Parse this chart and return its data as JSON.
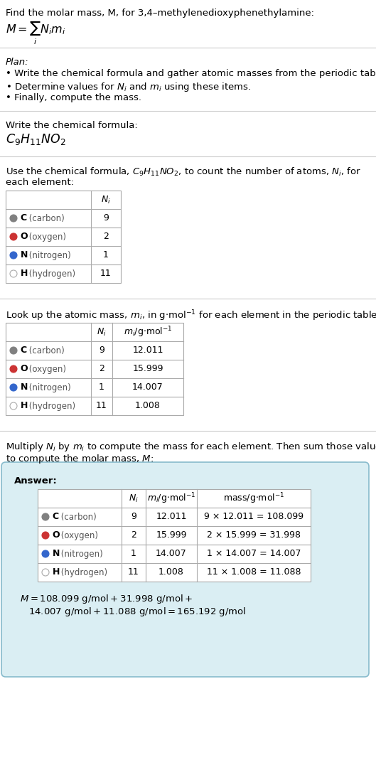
{
  "title_line": "Find the molar mass, M, for 3,4–methylenedioxyphenethylamine:",
  "bg_color": "#ffffff",
  "answer_bg": "#daeef3",
  "answer_border": "#aaccdd",
  "separator_color": "#cccccc",
  "table_border": "#aaaaaa",
  "elements": [
    "C",
    "O",
    "N",
    "H"
  ],
  "element_names": [
    "carbon",
    "oxygen",
    "nitrogen",
    "hydrogen"
  ],
  "element_colors": [
    "#808080",
    "#cc3333",
    "#3366cc",
    "#ffffff"
  ],
  "element_edge_colors": [
    "#808080",
    "#cc3333",
    "#3366cc",
    "#aaaaaa"
  ],
  "element_filled": [
    true,
    true,
    true,
    false
  ],
  "Ni": [
    9,
    2,
    1,
    11
  ],
  "mi": [
    "12.011",
    "15.999",
    "14.007",
    "1.008"
  ],
  "mass_eq": [
    "9 × 12.011 = 108.099",
    "2 × 15.999 = 31.998",
    "1 × 14.007 = 14.007",
    "11 × 1.008 = 11.088"
  ],
  "final_eq_line1": "M = 108.099 g/mol + 31.998 g/mol +",
  "final_eq_line2": "14.007 g/mol + 11.088 g/mol = 165.192 g/mol"
}
